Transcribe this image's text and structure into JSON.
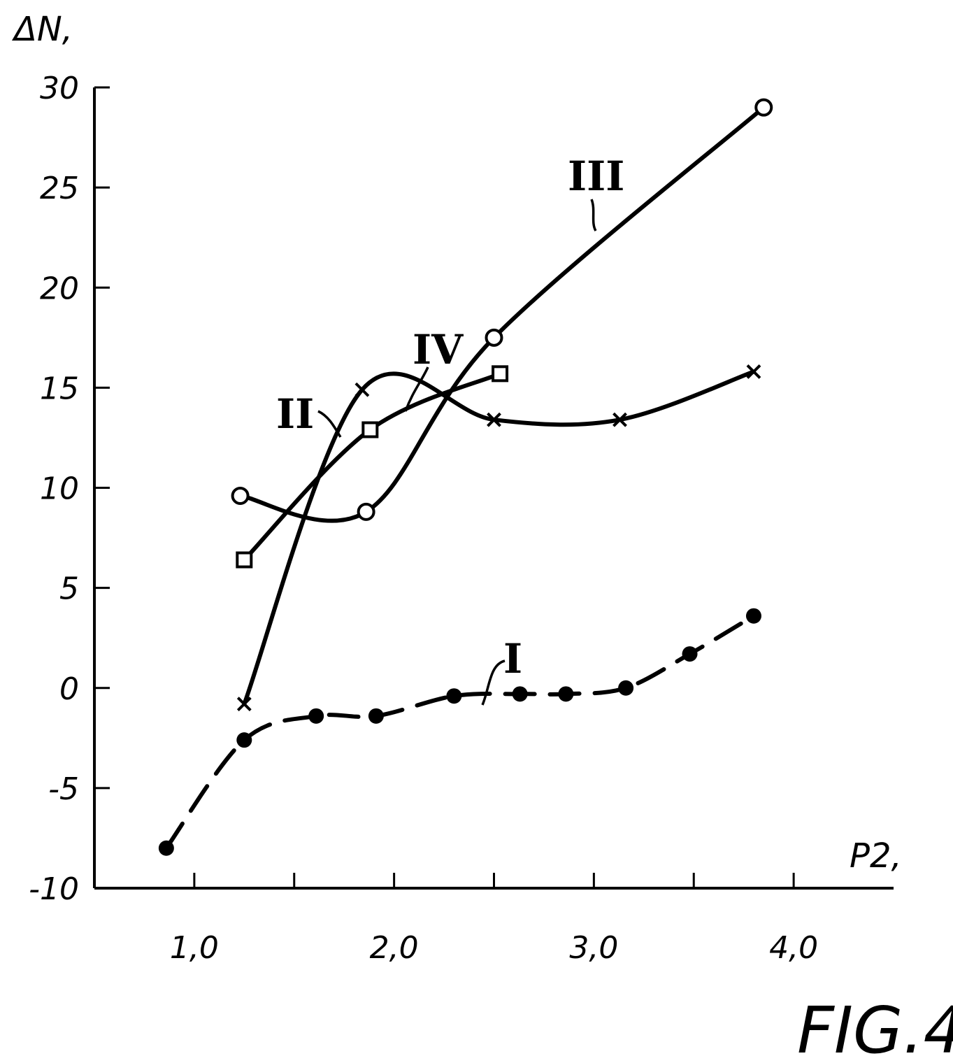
{
  "chart_data": {
    "type": "line",
    "title": "",
    "ylabel": "ΔN,",
    "xlabel": "P2,",
    "xlim": [
      0.5,
      4.5
    ],
    "ylim": [
      -10,
      30
    ],
    "x_ticks": [
      1.0,
      1.5,
      2.0,
      2.5,
      3.0,
      3.5,
      4.0
    ],
    "x_tick_labels": [
      "1,0",
      "",
      "2,0",
      "",
      "3,0",
      "",
      "4,0"
    ],
    "y_ticks": [
      30,
      25,
      20,
      15,
      10,
      5,
      0,
      -5,
      -10
    ],
    "y_tick_labels": [
      "30",
      "25",
      "20",
      "15",
      "10",
      "5",
      "0",
      "-5",
      "-10"
    ],
    "grid": false,
    "figure_label": "FIG.4",
    "series": [
      {
        "name": "I",
        "marker": "filled-circle",
        "line_style": "dash-dot",
        "x": [
          0.86,
          1.25,
          1.61,
          1.91,
          2.3,
          2.63,
          2.86,
          3.16,
          3.48,
          3.8
        ],
        "y": [
          -8.0,
          -2.6,
          -1.4,
          -1.4,
          -0.4,
          -0.3,
          -0.3,
          0.0,
          1.7,
          3.6
        ]
      },
      {
        "name": "II",
        "marker": "cross",
        "line_style": "solid",
        "x": [
          1.25,
          1.84,
          2.5,
          3.13,
          3.8
        ],
        "y": [
          -0.8,
          14.9,
          13.4,
          13.4,
          15.8
        ]
      },
      {
        "name": "III",
        "marker": "open-circle",
        "line_style": "solid",
        "x": [
          1.23,
          1.86,
          2.5,
          3.85
        ],
        "y": [
          9.6,
          8.8,
          17.5,
          29.0
        ]
      },
      {
        "name": "IV",
        "marker": "open-square",
        "line_style": "solid",
        "x": [
          1.25,
          1.88,
          2.53
        ],
        "y": [
          6.4,
          12.9,
          15.7
        ]
      }
    ]
  }
}
